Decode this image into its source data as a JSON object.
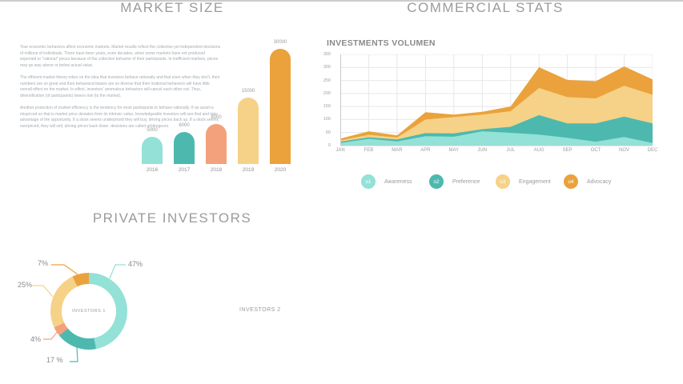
{
  "palette": {
    "mint": "#93e1d7",
    "teal": "#4db9ae",
    "salmon": "#f2a17c",
    "sand": "#f5d287",
    "orange": "#eba23c",
    "title_gray": "#9b9b9b"
  },
  "market_size": {
    "title": "MARKET SIZE",
    "paragraphs": [
      "Your economic behaviors affect economic markets. Market results reflect the collective yet independent decisions of millions of individuals. There have been years, even decades, when some markets have not produced expected or \"rational\" prices because of the collective behavior of their participants. In inefficient markets, prices may go way above or below actual value.",
      "The efficient market theory relies on the idea that investors behave rationally and that even when they don't, their numbers are so great and their behavioral biases are so diverse that their irrational behaviors will have little overall effect on the market. In effect, investors' anomalous behaviors will cancel each other out. Thus, diversification (of participants) lowers risk (to the market).",
      "Another protection of market efficiency is the tendency for most participants to behave rationally. If an asset is mispriced so that is market price deviates from its intrinsic value, knowledgeable investors will see that and take advantage of the opportunity. If a stock seems underpriced they will buy, driving prices back up. If a stock seems overpriced, they will sell, driving prices back down. decisions are called arbitrageurs."
    ]
  },
  "commercial_stats": {
    "title": "COMMERCIAL STATS",
    "subtitle": "INVESTMENTS VOLUMEN"
  },
  "private_investors": {
    "title": "PRIVATE INVESTORS",
    "center_label": "INVESTORS 1",
    "secondary_label": "INVESTORS 2"
  },
  "chart_data": [
    {
      "section": "market_size",
      "type": "bar",
      "categories": [
        "2016",
        "2017",
        "2018",
        "2019",
        "2020"
      ],
      "values": [
        5000,
        6000,
        8000,
        15000,
        30000
      ],
      "bar_colors": [
        "#93e1d7",
        "#4db9ae",
        "#f2a17c",
        "#f5d287",
        "#eba23c"
      ],
      "title": "MARKET SIZE",
      "xlabel": "",
      "ylabel": "",
      "grid": false,
      "value_labels_shown": true
    },
    {
      "section": "commercial_stats",
      "type": "area",
      "stacked": true,
      "title": "INVESTMENTS VOLUMEN",
      "x": [
        "JAN",
        "FEB",
        "MAR",
        "APR",
        "MAY",
        "JUN",
        "JUL",
        "AUG",
        "SEP",
        "OCT",
        "NOV",
        "DEC"
      ],
      "series": [
        {
          "name": "Awareness",
          "badge": "o1",
          "color": "#93e1d7",
          "values": [
            10,
            26,
            16,
            36,
            34,
            55,
            49,
            42,
            30,
            15,
            33,
            10
          ]
        },
        {
          "name": "Preference",
          "badge": "o2",
          "color": "#4db9ae",
          "values": [
            5,
            6,
            8,
            12,
            13,
            8,
            23,
            75,
            55,
            70,
            78,
            75
          ]
        },
        {
          "name": "Engagement",
          "badge": "o3",
          "color": "#f5d287",
          "values": [
            5,
            9,
            7,
            52,
            63,
            56,
            60,
            104,
            101,
            96,
            119,
            110
          ]
        },
        {
          "name": "Advocacy",
          "badge": "o4",
          "color": "#eba23c",
          "values": [
            7,
            14,
            8,
            28,
            9,
            11,
            18,
            80,
            66,
            66,
            74,
            59
          ]
        }
      ],
      "ylim": [
        0,
        350
      ],
      "yticks": [
        0,
        50,
        100,
        150,
        200,
        250,
        300,
        350
      ],
      "grid": true,
      "legend_position": "bottom"
    },
    {
      "section": "private_investors",
      "type": "pie",
      "donut": true,
      "title": "PRIVATE INVESTORS",
      "slices": [
        {
          "label": "47%",
          "value": 47,
          "color": "#93e1d7"
        },
        {
          "label": "17 %",
          "value": 17,
          "color": "#4db9ae"
        },
        {
          "label": "4%",
          "value": 4,
          "color": "#f2a17c"
        },
        {
          "label": "25%",
          "value": 25,
          "color": "#f5d287"
        },
        {
          "label": "7%",
          "value": 7,
          "color": "#eba23c"
        }
      ],
      "center_label": "INVESTORS 1"
    }
  ]
}
